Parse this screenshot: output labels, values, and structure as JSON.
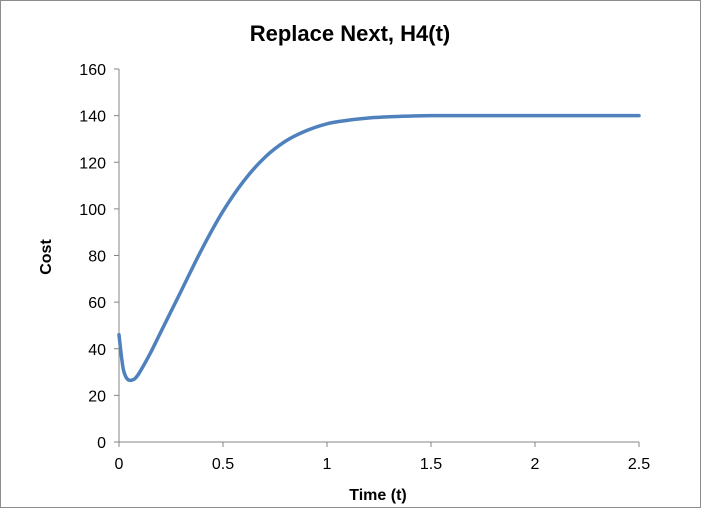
{
  "chart_data": {
    "type": "line",
    "title": "Replace Next, H4(t)",
    "xlabel": "Time (t)",
    "ylabel": "Cost",
    "xlim": [
      0,
      2.5
    ],
    "ylim": [
      0,
      160
    ],
    "x_ticks": [
      "0",
      "0.5",
      "1",
      "1.5",
      "2",
      "2.5"
    ],
    "y_ticks": [
      "0",
      "20",
      "40",
      "60",
      "80",
      "100",
      "120",
      "140",
      "160"
    ],
    "grid": false,
    "legend": "none",
    "series": [
      {
        "color": "#4f81bd",
        "x": [
          0,
          0.01,
          0.02,
          0.03,
          0.04,
          0.05,
          0.06,
          0.07,
          0.08,
          0.1,
          0.15,
          0.2,
          0.25,
          0.3,
          0.4,
          0.5,
          0.6,
          0.7,
          0.8,
          0.9,
          1.0,
          1.1,
          1.2,
          1.3,
          1.4,
          1.5,
          1.6,
          1.8,
          2.0,
          2.2,
          2.5
        ],
        "y": [
          46,
          38,
          31.5,
          28.5,
          27,
          26.5,
          26.5,
          26.8,
          27.5,
          30,
          38,
          47,
          56,
          65,
          83,
          99,
          112,
          122,
          129,
          133.5,
          136.5,
          138,
          139,
          139.5,
          139.8,
          140,
          140,
          140,
          140,
          140,
          140
        ]
      }
    ]
  }
}
